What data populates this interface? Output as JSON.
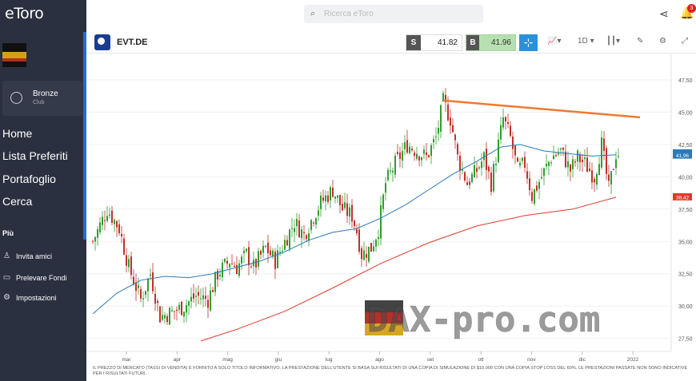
{
  "app": {
    "logo": "eToro"
  },
  "sidebar": {
    "club_name": "Bronze",
    "club_sub": "Club",
    "nav": [
      "Home",
      "Lista Preferiti",
      "Portafoglio",
      "Cerca"
    ],
    "more_label": "Più",
    "sub_items": [
      "Invita amici",
      "Prelevare Fondi",
      "Impostazioni"
    ]
  },
  "topbar": {
    "search_placeholder": "Ricerca eToro",
    "notification_count": "3"
  },
  "instrument": {
    "symbol": "EVT.DE",
    "sell_label": "S",
    "sell_price": "41.82",
    "buy_label": "B",
    "buy_price": "41.96",
    "timeframe": "1D"
  },
  "watermark": "DAX-pro.com",
  "disclaimer": "IL PREZZO DI MERCATO (TASSI DI VENDITA) È FORNITO A SOLO TITOLO INFORMATIVO. LA PRESTAZIONE DELL'UTENTE SI BASA SUI RISULTATI DI UNA COPIA DI SIMULAZIONE DI $10.000 CON UNA COPIA STOP LOSS DEL 60%. LE PRESTAZIONI PASSATE NON SONO INDICATIVE PER I RISULTATI FUTURI.",
  "colors": {
    "up": "#2f9e2f",
    "down": "#c0302a",
    "ma_short": "#2a7ab8",
    "ma_long": "#e03a2a",
    "trendline": "#f07a30",
    "accent": "#1b6fd8"
  },
  "chart_data": {
    "type": "candlestick",
    "y_ticks": [
      "47,50",
      "45,00",
      "42,50",
      "40,00",
      "37,50",
      "35,00",
      "32,50",
      "30,00",
      "27,50"
    ],
    "y_tick_values": [
      47.5,
      45,
      42.5,
      40,
      37.5,
      35,
      32.5,
      30,
      27.5
    ],
    "ylim": [
      26.8,
      48.3
    ],
    "x_labels": [
      "mar",
      "apr",
      "mag",
      "giu",
      "lug",
      "ago",
      "set",
      "ott",
      "nov",
      "dic",
      "2022"
    ],
    "price_labels": [
      "41,82",
      "41,96",
      "38,42"
    ],
    "price_values": [
      41.82,
      41.96,
      38.42
    ],
    "close_path": [
      [
        0,
        35.0
      ],
      [
        6,
        37.5
      ],
      [
        11,
        36.0
      ],
      [
        15,
        33.0
      ],
      [
        20,
        30.5
      ],
      [
        24,
        32.5
      ],
      [
        28,
        29.2
      ],
      [
        33,
        29.5
      ],
      [
        38,
        30.0
      ],
      [
        43,
        30.8
      ],
      [
        48,
        30.5
      ],
      [
        52,
        32.5
      ],
      [
        57,
        33.5
      ],
      [
        60,
        33.0
      ],
      [
        64,
        34.0
      ],
      [
        67,
        33.0
      ],
      [
        72,
        34.5
      ],
      [
        76,
        33.5
      ],
      [
        80,
        35.0
      ],
      [
        84,
        36.5
      ],
      [
        88,
        35.5
      ],
      [
        92,
        37.0
      ],
      [
        95,
        38.0
      ],
      [
        100,
        39.0
      ],
      [
        104,
        37.5
      ],
      [
        108,
        37.0
      ],
      [
        110,
        35.8
      ],
      [
        112,
        34.0
      ],
      [
        116,
        34.5
      ],
      [
        119,
        36.0
      ],
      [
        122,
        39.5
      ],
      [
        126,
        41.0
      ],
      [
        131,
        42.5
      ],
      [
        135,
        42.0
      ],
      [
        139,
        41.5
      ],
      [
        143,
        43.0
      ],
      [
        146,
        45.8
      ],
      [
        149,
        44.5
      ],
      [
        152,
        41.5
      ],
      [
        156,
        39.5
      ],
      [
        160,
        40.5
      ],
      [
        163,
        41.5
      ],
      [
        166,
        39.5
      ],
      [
        171,
        44.5
      ],
      [
        174,
        43.0
      ],
      [
        177,
        40.5
      ],
      [
        180,
        41.0
      ],
      [
        183,
        38.5
      ],
      [
        187,
        40.0
      ],
      [
        191,
        41.5
      ],
      [
        195,
        42.0
      ],
      [
        199,
        40.5
      ],
      [
        202,
        41.5
      ],
      [
        205,
        41.0
      ],
      [
        209,
        40.0
      ],
      [
        212,
        42.5
      ],
      [
        215,
        39.0
      ],
      [
        218,
        41.82
      ]
    ],
    "ma50": [
      [
        0,
        29.4
      ],
      [
        10,
        31.0
      ],
      [
        20,
        32.0
      ],
      [
        30,
        32.3
      ],
      [
        40,
        32.2
      ],
      [
        50,
        32.5
      ],
      [
        60,
        33.0
      ],
      [
        70,
        33.5
      ],
      [
        80,
        34.2
      ],
      [
        90,
        35.1
      ],
      [
        100,
        35.7
      ],
      [
        110,
        36.0
      ],
      [
        120,
        36.8
      ],
      [
        130,
        37.8
      ],
      [
        140,
        39.0
      ],
      [
        150,
        40.2
      ],
      [
        160,
        41.2
      ],
      [
        170,
        42.3
      ],
      [
        178,
        42.5
      ],
      [
        188,
        42.0
      ],
      [
        198,
        41.8
      ],
      [
        208,
        41.6
      ],
      [
        218,
        41.7
      ]
    ],
    "ma200": [
      [
        45,
        27.3
      ],
      [
        60,
        28.2
      ],
      [
        80,
        29.6
      ],
      [
        100,
        31.4
      ],
      [
        120,
        33.3
      ],
      [
        140,
        34.9
      ],
      [
        160,
        36.2
      ],
      [
        180,
        37.0
      ],
      [
        200,
        37.5
      ],
      [
        218,
        38.42
      ]
    ],
    "trendline": [
      [
        146,
        45.9
      ],
      [
        228,
        44.6
      ]
    ]
  }
}
